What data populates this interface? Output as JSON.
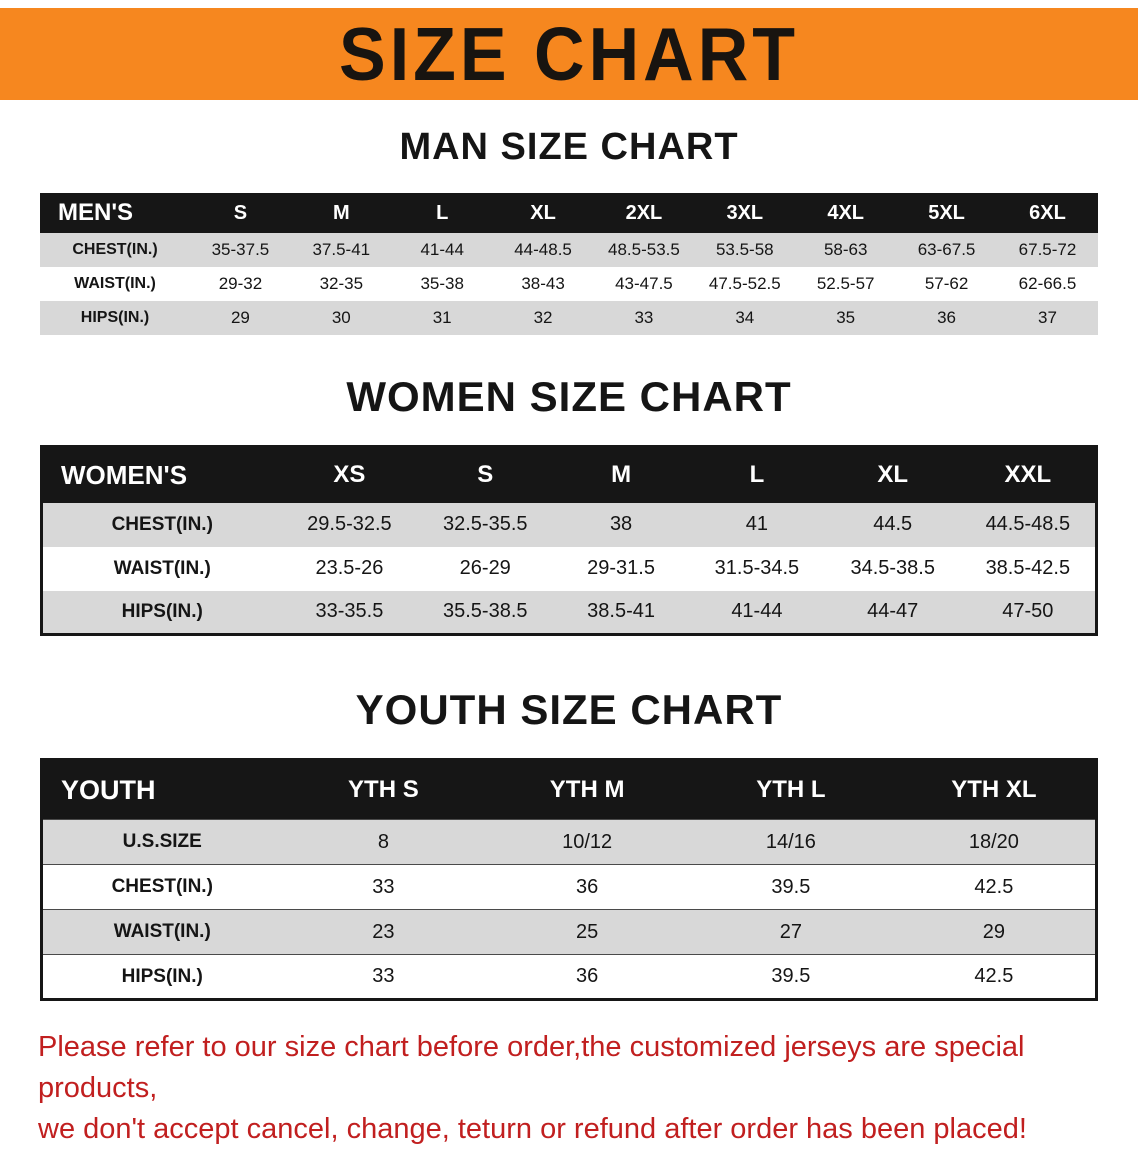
{
  "banner": {
    "title": "SIZE CHART",
    "bg_color": "#f6871f"
  },
  "men": {
    "section_title": "MAN SIZE CHART",
    "table": {
      "header": [
        "MEN'S",
        "S",
        "M",
        "L",
        "XL",
        "2XL",
        "3XL",
        "4XL",
        "5XL",
        "6XL"
      ],
      "rows": [
        [
          "CHEST(IN.)",
          "35-37.5",
          "37.5-41",
          "41-44",
          "44-48.5",
          "48.5-53.5",
          "53.5-58",
          "58-63",
          "63-67.5",
          "67.5-72"
        ],
        [
          "WAIST(IN.)",
          "29-32",
          "32-35",
          "35-38",
          "38-43",
          "43-47.5",
          "47.5-52.5",
          "52.5-57",
          "57-62",
          "62-66.5"
        ],
        [
          "HIPS(IN.)",
          "29",
          "30",
          "31",
          "32",
          "33",
          "34",
          "35",
          "36",
          "37"
        ]
      ]
    }
  },
  "women": {
    "section_title": "WOMEN SIZE CHART",
    "table": {
      "header": [
        "WOMEN'S",
        "XS",
        "S",
        "M",
        "L",
        "XL",
        "XXL"
      ],
      "rows": [
        [
          "CHEST(IN.)",
          "29.5-32.5",
          "32.5-35.5",
          "38",
          "41",
          "44.5",
          "44.5-48.5"
        ],
        [
          "WAIST(IN.)",
          "23.5-26",
          "26-29",
          "29-31.5",
          "31.5-34.5",
          "34.5-38.5",
          "38.5-42.5"
        ],
        [
          "HIPS(IN.)",
          "33-35.5",
          "35.5-38.5",
          "38.5-41",
          "41-44",
          "44-47",
          "47-50"
        ]
      ]
    }
  },
  "youth": {
    "section_title": "YOUTH SIZE CHART",
    "table": {
      "header": [
        "YOUTH",
        "YTH S",
        "YTH M",
        "YTH L",
        "YTH XL"
      ],
      "rows": [
        [
          "U.S.SIZE",
          "8",
          "10/12",
          "14/16",
          "18/20"
        ],
        [
          "CHEST(IN.)",
          "33",
          "36",
          "39.5",
          "42.5"
        ],
        [
          "WAIST(IN.)",
          "23",
          "25",
          "27",
          "29"
        ],
        [
          "HIPS(IN.)",
          "33",
          "36",
          "39.5",
          "42.5"
        ]
      ]
    }
  },
  "disclaimer": {
    "text_color": "#c11f1f",
    "line1": "Please refer to our size chart before order,the customized jerseys are special products,",
    "line2": "we don't accept cancel, change, teturn or refund after order has been placed!"
  },
  "colors": {
    "banner_orange": "#f6871f",
    "header_bar_black": "#161616",
    "row_gray": "#d8d8d8",
    "row_white": "#ffffff",
    "disclaimer_red": "#c11f1f"
  }
}
